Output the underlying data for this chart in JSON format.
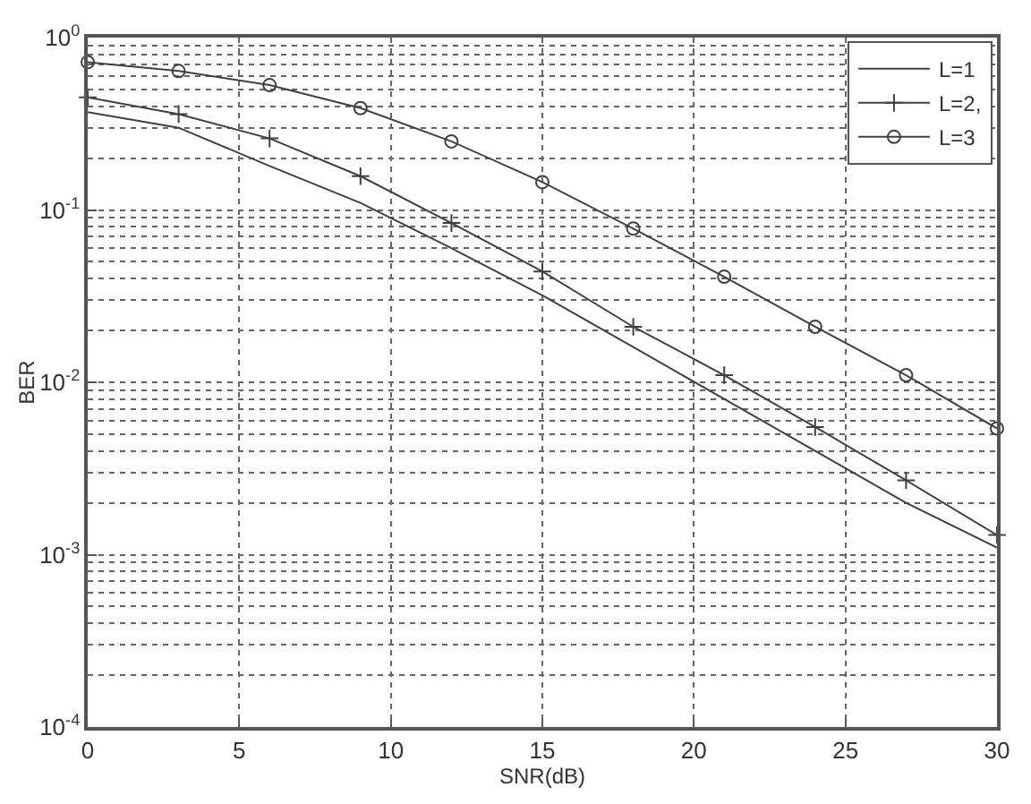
{
  "chart_data": {
    "type": "line",
    "xlabel": "SNR(dB)",
    "ylabel": "BER",
    "log": "y",
    "x": [
      0,
      3,
      6,
      9,
      12,
      15,
      18,
      21,
      24,
      27,
      30
    ],
    "xlim": [
      0,
      30
    ],
    "xticks": [
      0,
      5,
      10,
      15,
      20,
      25,
      30
    ],
    "ylim": [
      0.0001,
      1
    ],
    "yticks": [
      {
        "value": 0.0001,
        "label": "10$^{-4}$"
      },
      {
        "value": 0.001,
        "label": "10$^{-3}$"
      },
      {
        "value": 0.01,
        "label": "10$^{-2}$"
      },
      {
        "value": 0.1,
        "label": "10$^{-1}$"
      },
      {
        "value": 1,
        "label": "10$^{0}$"
      }
    ],
    "grid": true,
    "legend": "top right",
    "line_style": "solid",
    "series": [
      {
        "name": "L=1",
        "color": "#404040",
        "marker": "none",
        "values": [
          0.37,
          0.3,
          0.18,
          0.11,
          0.06,
          0.032,
          0.016,
          0.008,
          0.004,
          0.002,
          0.0011
        ]
      },
      {
        "name": "L=2,",
        "color": "#404040",
        "marker": "cross",
        "values": [
          0.45,
          0.36,
          0.26,
          0.157,
          0.084,
          0.044,
          0.021,
          0.011,
          0.0055,
          0.0027,
          0.0013
        ]
      },
      {
        "name": "L=3",
        "color": "#404040",
        "marker": "circle",
        "values": [
          0.72,
          0.64,
          0.53,
          0.39,
          0.25,
          0.145,
          0.078,
          0.041,
          0.021,
          0.011,
          0.0054
        ]
      }
    ]
  }
}
